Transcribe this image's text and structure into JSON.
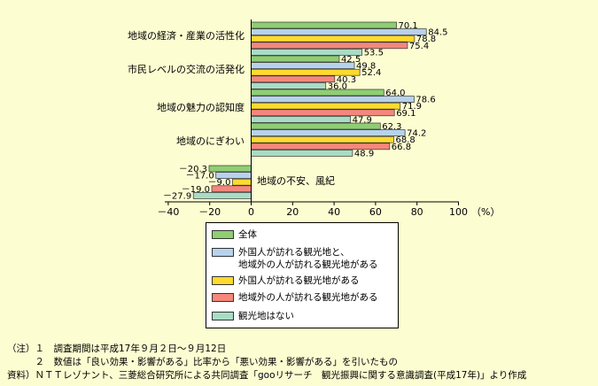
{
  "chart_data": {
    "type": "bar",
    "orientation": "horizontal",
    "categories": [
      "地域の経済・産業の活性化",
      "市民レベルの交流の活発化",
      "地域の魅力の認知度",
      "地域のにぎわい",
      "地域の不安、風紀"
    ],
    "series": [
      {
        "name": "全体",
        "color": "#8fce73",
        "values": [
          70.1,
          42.5,
          64.0,
          62.3,
          -20.3
        ],
        "labels": [
          "70.1",
          "42.5",
          "64.0",
          "62.3",
          "－20.3"
        ]
      },
      {
        "name": "外国人が訪れる観光地と、\n地域外の人が訪れる観光地がある",
        "color": "#b7d2ec",
        "values": [
          84.5,
          49.8,
          78.6,
          74.2,
          -17.0
        ],
        "labels": [
          "84.5",
          "49.8",
          "78.6",
          "74.2",
          "－17.0"
        ]
      },
      {
        "name": "外国人が訪れる観光地がある",
        "color": "#ffda2e",
        "values": [
          78.8,
          52.4,
          71.9,
          68.8,
          -9.0
        ],
        "labels": [
          "78.8",
          "52.4",
          "71.9",
          "68.8",
          "－9.0"
        ]
      },
      {
        "name": "地域外の人が訪れる観光地がある",
        "color": "#f5877d",
        "values": [
          75.4,
          40.3,
          69.1,
          66.8,
          -19.0
        ],
        "labels": [
          "75.4",
          "40.3",
          "69.1",
          "66.8",
          "－19.0"
        ]
      },
      {
        "name": "観光地はない",
        "color": "#a8dcc4",
        "values": [
          53.5,
          36.0,
          47.9,
          48.9,
          -27.9
        ],
        "labels": [
          "53.5",
          "36.0",
          "47.9",
          "48.9",
          "－27.9"
        ]
      }
    ],
    "x_ticks": [
      "－40",
      "－20",
      "0",
      "20",
      "40",
      "60",
      "80",
      "100"
    ],
    "x_unit": "（%）",
    "xlim": [
      -40,
      100
    ],
    "grid": false,
    "legend_position": "bottom-center"
  },
  "notes": {
    "line1": "（注）１　調査期間は平成17年９月２日～９月12日",
    "line2": "　　　２　数値は「良い効果・影響がある」比率から「悪い効果・影響がある」を引いたもの",
    "line3": "資料）ＮＴＴレゾナント、三菱総合研究所による共同調査「gooリサーチ　観光振興に関する意識調査(平成17年)」より作成"
  }
}
